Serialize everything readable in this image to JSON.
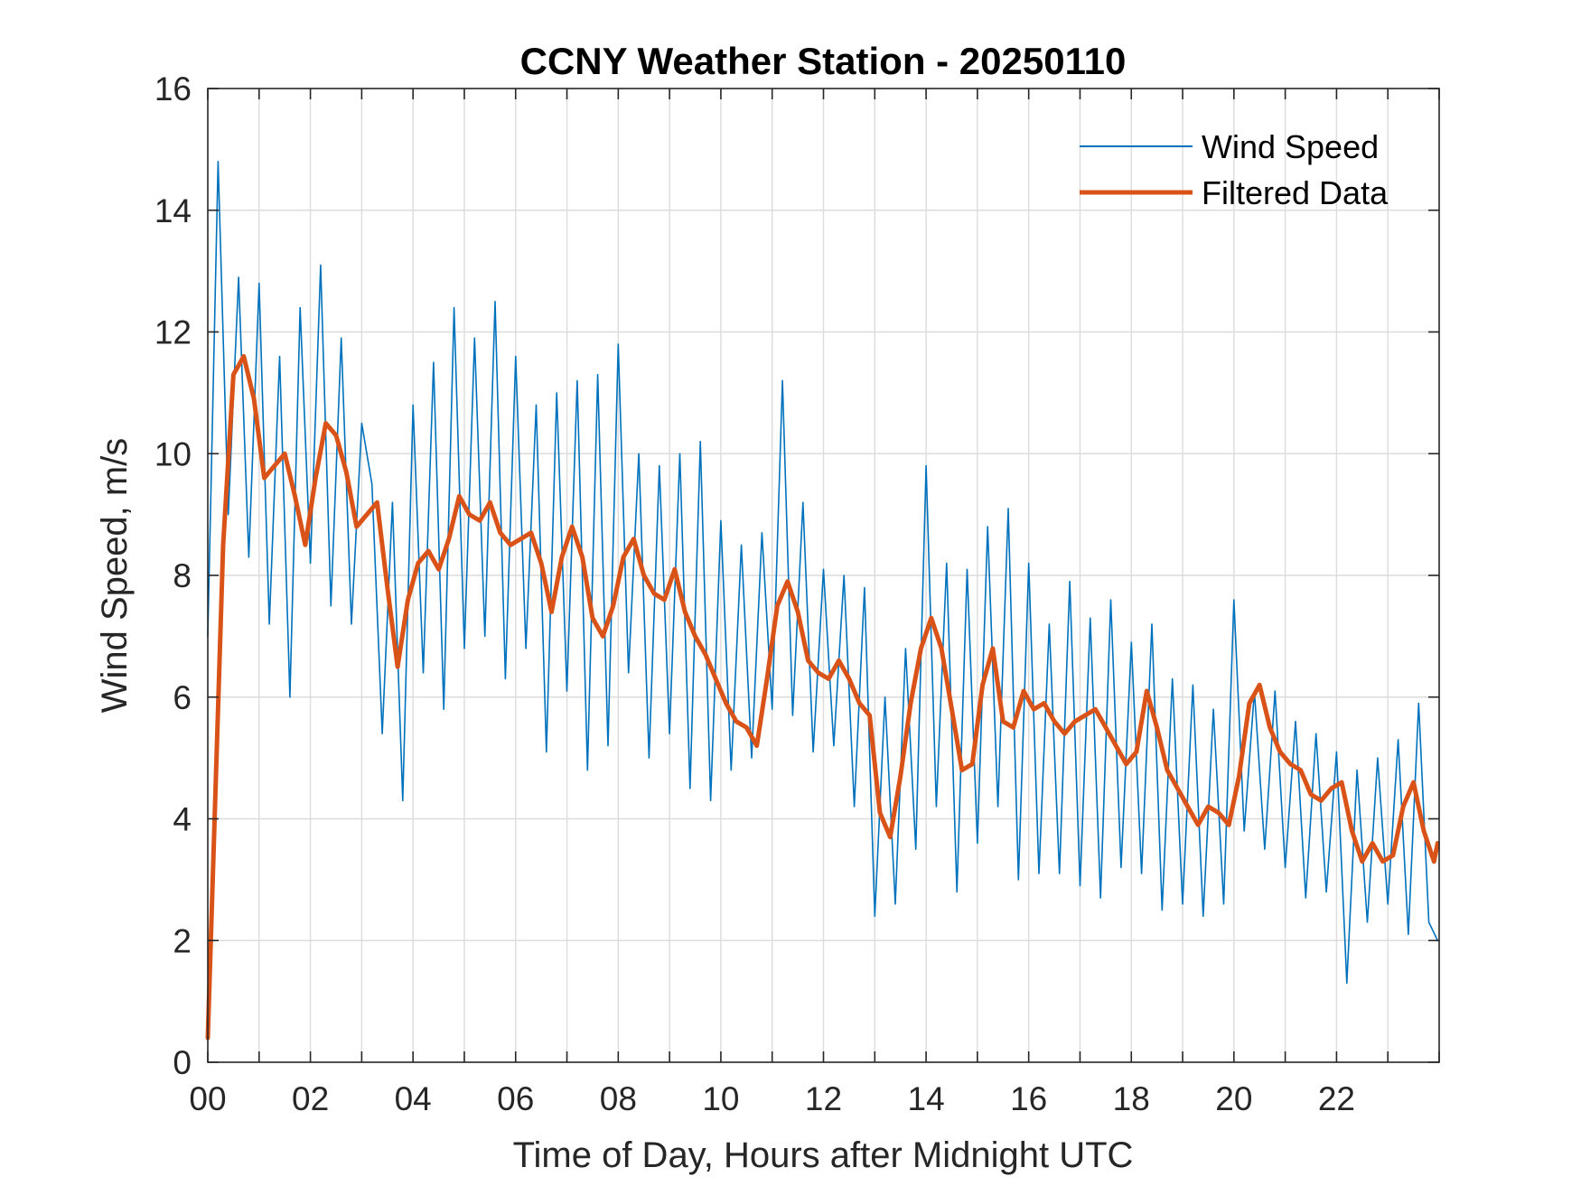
{
  "chart_data": {
    "type": "line",
    "title": "CCNY Weather Station - 20250110",
    "xlabel": "Time of Day, Hours after Midnight UTC",
    "ylabel": "Wind Speed, m/s",
    "xlim": [
      0,
      24
    ],
    "ylim": [
      0,
      16
    ],
    "grid": true,
    "legend_position": "top-right",
    "xticks": [
      0,
      2,
      4,
      6,
      8,
      10,
      12,
      14,
      16,
      18,
      20,
      22
    ],
    "xtick_labels": [
      "00",
      "02",
      "04",
      "06",
      "08",
      "10",
      "12",
      "14",
      "16",
      "18",
      "20",
      "22"
    ],
    "yticks": [
      0,
      2,
      4,
      6,
      8,
      10,
      12,
      14,
      16
    ],
    "ytick_labels": [
      "0",
      "2",
      "4",
      "6",
      "8",
      "10",
      "12",
      "14",
      "16"
    ],
    "series": [
      {
        "name": "Wind Speed",
        "color": "#0072BD",
        "style": "thin",
        "x": [
          0.0,
          0.2,
          0.4,
          0.6,
          0.8,
          1.0,
          1.2,
          1.4,
          1.6,
          1.8,
          2.0,
          2.2,
          2.4,
          2.6,
          2.8,
          3.0,
          3.2,
          3.4,
          3.6,
          3.8,
          4.0,
          4.2,
          4.4,
          4.6,
          4.8,
          5.0,
          5.2,
          5.4,
          5.6,
          5.8,
          6.0,
          6.2,
          6.4,
          6.6,
          6.8,
          7.0,
          7.2,
          7.4,
          7.6,
          7.8,
          8.0,
          8.2,
          8.4,
          8.6,
          8.8,
          9.0,
          9.2,
          9.4,
          9.6,
          9.8,
          10.0,
          10.2,
          10.4,
          10.6,
          10.8,
          11.0,
          11.2,
          11.4,
          11.6,
          11.8,
          12.0,
          12.2,
          12.4,
          12.6,
          12.8,
          13.0,
          13.2,
          13.4,
          13.6,
          13.8,
          14.0,
          14.2,
          14.4,
          14.6,
          14.8,
          15.0,
          15.2,
          15.4,
          15.6,
          15.8,
          16.0,
          16.2,
          16.4,
          16.6,
          16.8,
          17.0,
          17.2,
          17.4,
          17.6,
          17.8,
          18.0,
          18.2,
          18.4,
          18.6,
          18.8,
          19.0,
          19.2,
          19.4,
          19.6,
          19.8,
          20.0,
          20.2,
          20.4,
          20.6,
          20.8,
          21.0,
          21.2,
          21.4,
          21.6,
          21.8,
          22.0,
          22.2,
          22.4,
          22.6,
          22.8,
          23.0,
          23.2,
          23.4,
          23.6,
          23.8,
          23.97
        ],
        "values": [
          7.0,
          14.8,
          9.0,
          12.9,
          8.3,
          12.8,
          7.2,
          11.6,
          6.0,
          12.4,
          8.2,
          13.1,
          7.5,
          11.9,
          7.2,
          10.5,
          9.5,
          5.4,
          9.2,
          4.3,
          10.8,
          6.4,
          11.5,
          5.8,
          12.4,
          6.8,
          11.9,
          7.0,
          12.5,
          6.3,
          11.6,
          6.8,
          10.8,
          5.1,
          11.0,
          6.1,
          11.2,
          4.8,
          11.3,
          5.2,
          11.8,
          6.4,
          10.0,
          5.0,
          9.8,
          5.4,
          10.0,
          4.5,
          10.2,
          4.3,
          8.9,
          4.8,
          8.5,
          5.0,
          8.7,
          5.8,
          11.2,
          5.7,
          9.2,
          5.1,
          8.1,
          5.2,
          8.0,
          4.2,
          7.8,
          2.4,
          6.0,
          2.6,
          6.8,
          3.5,
          9.8,
          4.2,
          8.2,
          2.8,
          8.1,
          3.6,
          8.8,
          4.2,
          9.1,
          3.0,
          8.2,
          3.1,
          7.2,
          3.1,
          7.9,
          2.9,
          7.3,
          2.7,
          7.6,
          3.2,
          6.9,
          3.1,
          7.2,
          2.5,
          6.3,
          2.6,
          6.2,
          2.4,
          5.8,
          2.6,
          7.6,
          3.8,
          6.1,
          3.5,
          6.1,
          3.2,
          5.6,
          2.7,
          5.4,
          2.8,
          5.1,
          1.3,
          4.8,
          2.3,
          5.0,
          2.6,
          5.3,
          2.1,
          5.9,
          2.3,
          2.0
        ]
      },
      {
        "name": "Filtered Data",
        "color": "#D95319",
        "style": "thick",
        "x": [
          0.0,
          0.3,
          0.5,
          0.7,
          0.9,
          1.1,
          1.3,
          1.5,
          1.7,
          1.9,
          2.1,
          2.3,
          2.5,
          2.7,
          2.9,
          3.1,
          3.3,
          3.5,
          3.7,
          3.9,
          4.1,
          4.3,
          4.5,
          4.7,
          4.9,
          5.1,
          5.3,
          5.5,
          5.7,
          5.9,
          6.1,
          6.3,
          6.5,
          6.7,
          6.9,
          7.1,
          7.3,
          7.5,
          7.7,
          7.9,
          8.1,
          8.3,
          8.5,
          8.7,
          8.9,
          9.1,
          9.3,
          9.5,
          9.7,
          9.9,
          10.1,
          10.3,
          10.5,
          10.7,
          10.9,
          11.1,
          11.3,
          11.5,
          11.7,
          11.9,
          12.1,
          12.3,
          12.5,
          12.7,
          12.9,
          13.1,
          13.3,
          13.5,
          13.7,
          13.9,
          14.1,
          14.3,
          14.5,
          14.7,
          14.9,
          15.1,
          15.3,
          15.5,
          15.7,
          15.9,
          16.1,
          16.3,
          16.5,
          16.7,
          16.9,
          17.1,
          17.3,
          17.5,
          17.7,
          17.9,
          18.1,
          18.3,
          18.5,
          18.7,
          18.9,
          19.1,
          19.3,
          19.5,
          19.7,
          19.9,
          20.1,
          20.3,
          20.5,
          20.7,
          20.9,
          21.1,
          21.3,
          21.5,
          21.7,
          21.9,
          22.1,
          22.3,
          22.5,
          22.7,
          22.9,
          23.1,
          23.3,
          23.5,
          23.7,
          23.9,
          23.97
        ],
        "values": [
          0.4,
          8.5,
          11.3,
          11.6,
          10.9,
          9.6,
          9.8,
          10.0,
          9.3,
          8.5,
          9.6,
          10.5,
          10.3,
          9.7,
          8.8,
          9.0,
          9.2,
          7.8,
          6.5,
          7.6,
          8.2,
          8.4,
          8.1,
          8.6,
          9.3,
          9.0,
          8.9,
          9.2,
          8.7,
          8.5,
          8.6,
          8.7,
          8.2,
          7.4,
          8.3,
          8.8,
          8.3,
          7.3,
          7.0,
          7.5,
          8.3,
          8.6,
          8.0,
          7.7,
          7.6,
          8.1,
          7.4,
          7.0,
          6.7,
          6.3,
          5.9,
          5.6,
          5.5,
          5.2,
          6.3,
          7.5,
          7.9,
          7.4,
          6.6,
          6.4,
          6.3,
          6.6,
          6.3,
          5.9,
          5.7,
          4.1,
          3.7,
          4.7,
          5.9,
          6.8,
          7.3,
          6.8,
          5.8,
          4.8,
          4.9,
          6.2,
          6.8,
          5.6,
          5.5,
          6.1,
          5.8,
          5.9,
          5.6,
          5.4,
          5.6,
          5.7,
          5.8,
          5.5,
          5.2,
          4.9,
          5.1,
          6.1,
          5.5,
          4.8,
          4.5,
          4.2,
          3.9,
          4.2,
          4.1,
          3.9,
          4.7,
          5.9,
          6.2,
          5.5,
          5.1,
          4.9,
          4.8,
          4.4,
          4.3,
          4.5,
          4.6,
          3.8,
          3.3,
          3.6,
          3.3,
          3.4,
          4.2,
          4.6,
          3.8,
          3.3,
          3.6
        ]
      }
    ]
  }
}
